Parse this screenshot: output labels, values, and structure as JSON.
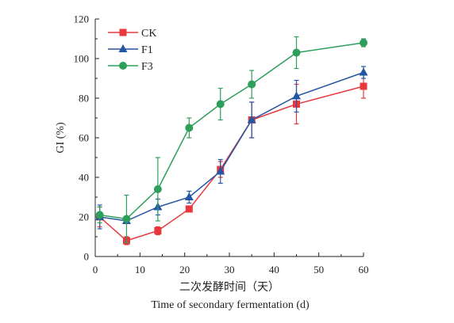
{
  "chart_data": {
    "type": "line",
    "xlabel_cn": "二次发酵时间（天）",
    "xlabel_en": "Time of secondary fermentation (d)",
    "ylabel": "GI (%)",
    "xlim": [
      0,
      60
    ],
    "ylim": [
      0,
      120
    ],
    "xticks": [
      0,
      10,
      20,
      30,
      40,
      50,
      60
    ],
    "yticks": [
      0,
      20,
      40,
      60,
      80,
      100,
      120
    ],
    "legend_position": "top-left",
    "grid": false,
    "x": [
      1,
      7,
      14,
      21,
      28,
      35,
      45,
      60
    ],
    "series": [
      {
        "name": "CK",
        "color": "#e8383d",
        "marker": "square",
        "values": [
          20,
          8,
          13,
          24,
          44,
          69,
          77,
          86
        ],
        "errors": [
          5,
          2,
          2,
          1,
          4,
          9,
          10,
          6
        ]
      },
      {
        "name": "F1",
        "color": "#2456a4",
        "marker": "triangle",
        "values": [
          20,
          18,
          25,
          30,
          43,
          69,
          81,
          93
        ],
        "errors": [
          6,
          1,
          4,
          3,
          6,
          9,
          8,
          3
        ]
      },
      {
        "name": "F3",
        "color": "#2e9e5b",
        "marker": "circle",
        "values": [
          21,
          19,
          34,
          65,
          77,
          87,
          103,
          108
        ],
        "errors": [
          4,
          12,
          16,
          5,
          8,
          7,
          8,
          2
        ]
      }
    ]
  }
}
